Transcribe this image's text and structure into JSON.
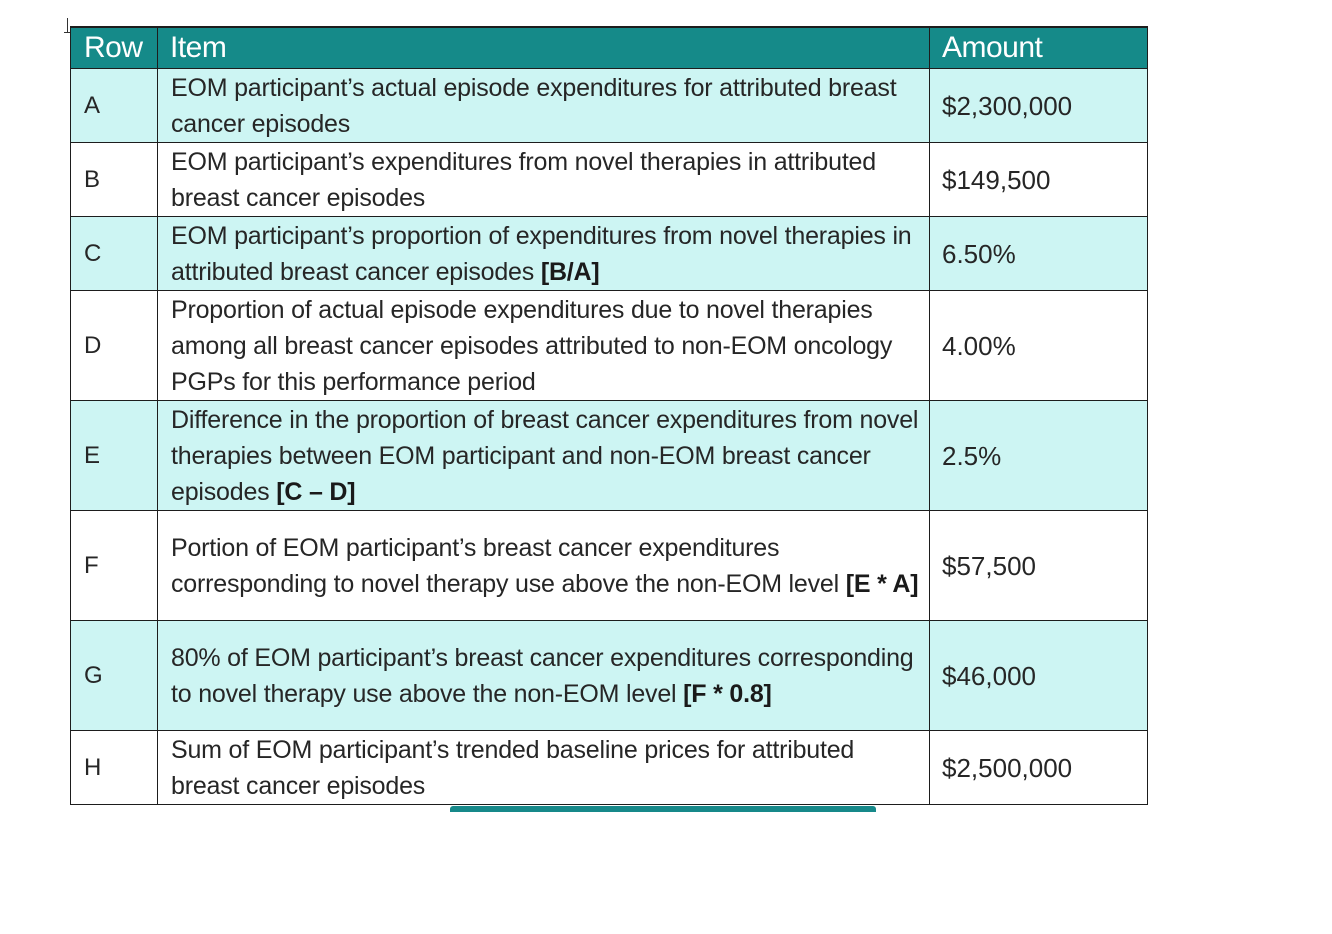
{
  "table": {
    "headers": {
      "row": "Row",
      "item": "Item",
      "amount": "Amount"
    },
    "rows": [
      {
        "row": "A",
        "item": "EOM participant’s actual episode expenditures for attributed breast cancer episodes",
        "formula": "",
        "amount": "$2,300,000"
      },
      {
        "row": "B",
        "item": "EOM participant’s expenditures from novel therapies in attributed breast cancer episodes",
        "formula": "",
        "amount": "$149,500"
      },
      {
        "row": "C",
        "item": "EOM participant’s proportion of expenditures from novel therapies in attributed breast cancer episodes",
        "formula": "[B/A]",
        "amount": "6.50%"
      },
      {
        "row": "D",
        "item": "Proportion of actual episode expenditures due to novel therapies among all breast cancer episodes attributed to non-EOM oncology PGPs for this performance period",
        "formula": "",
        "amount": "4.00%"
      },
      {
        "row": "E",
        "item": "Difference in the proportion of breast cancer expenditures from novel therapies between EOM participant and non-EOM breast cancer episodes",
        "formula": "[C – D]",
        "amount": "2.5%"
      },
      {
        "row": "F",
        "item": "Portion of EOM participant’s breast cancer expenditures corresponding to novel therapy use above the non-EOM level",
        "formula": "[E * A]",
        "amount": "$57,500"
      },
      {
        "row": "G",
        "item": "80% of EOM participant’s breast cancer expenditures corresponding to novel therapy use above the non-EOM level",
        "formula": "[F * 0.8]",
        "amount": "$46,000"
      },
      {
        "row": "H",
        "item": "Sum of EOM participant’s trended baseline prices for attributed breast cancer episodes",
        "formula": "",
        "amount": "$2,500,000"
      }
    ]
  },
  "colors": {
    "header_bg": "#158a89",
    "shaded_row_bg": "#cdf5f3",
    "border": "#1d1d1d"
  }
}
